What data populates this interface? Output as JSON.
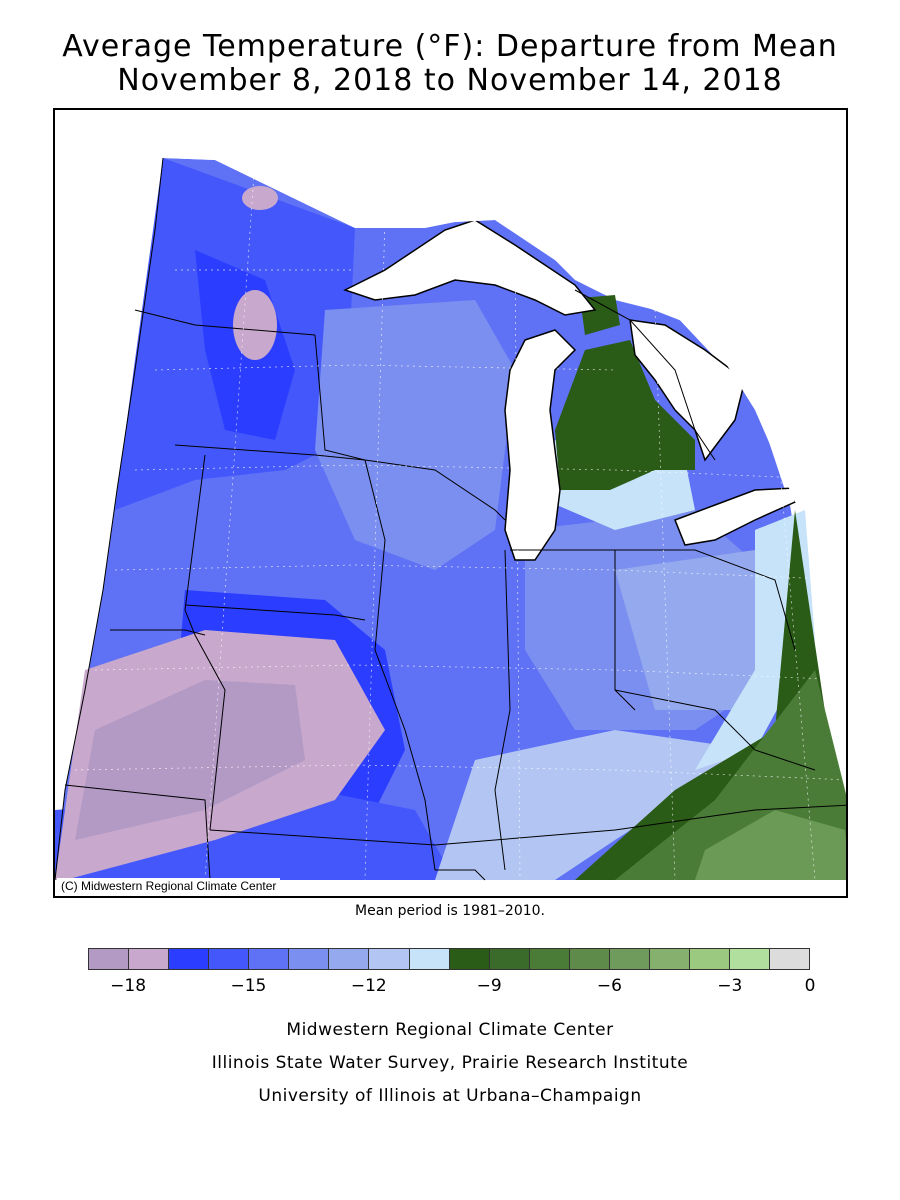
{
  "title": {
    "line1": "Average Temperature (°F): Departure from Mean",
    "line2": "November 8, 2018 to November 14, 2018"
  },
  "map": {
    "copyright": "(C) Midwestern Regional Climate Center",
    "region_colors": {
      "purple_dark": "#b29ac4",
      "purple_light": "#c8a8cc",
      "blue_deep": "#2b3dff",
      "blue_strong": "#4457fb",
      "blue_mid": "#5f72f5",
      "blue_med": "#7b8ff0",
      "blue_soft": "#95aaee",
      "blue_pale": "#b3c6f3",
      "blue_ice": "#c7e3fa",
      "green_dark": "#2a5b17",
      "green_forest": "#3a6b2a",
      "green_mid": "#4a7c38",
      "green_light": "#6a9a55",
      "white": "#ffffff"
    }
  },
  "mean_period": "Mean period is 1981–2010.",
  "legend": {
    "colors": [
      "#b29ac4",
      "#c8a8cc",
      "#2b3dff",
      "#4457fb",
      "#5f72f5",
      "#7b8ff0",
      "#95aaee",
      "#b3c6f3",
      "#c7e3fa",
      "#2a5b17",
      "#3a6b2a",
      "#4a7c38",
      "#5e8b4a",
      "#6f9b5c",
      "#86b06e",
      "#9ac97f",
      "#b1df9d",
      "#dcdcdc"
    ],
    "ticks": [
      "−18",
      "−15",
      "−12",
      "−9",
      "−6",
      "−3",
      "0"
    ]
  },
  "footer": {
    "line1": "Midwestern Regional Climate Center",
    "line2": "Illinois State Water Survey, Prairie Research Institute",
    "line3": "University of Illinois at Urbana–Champaign"
  }
}
